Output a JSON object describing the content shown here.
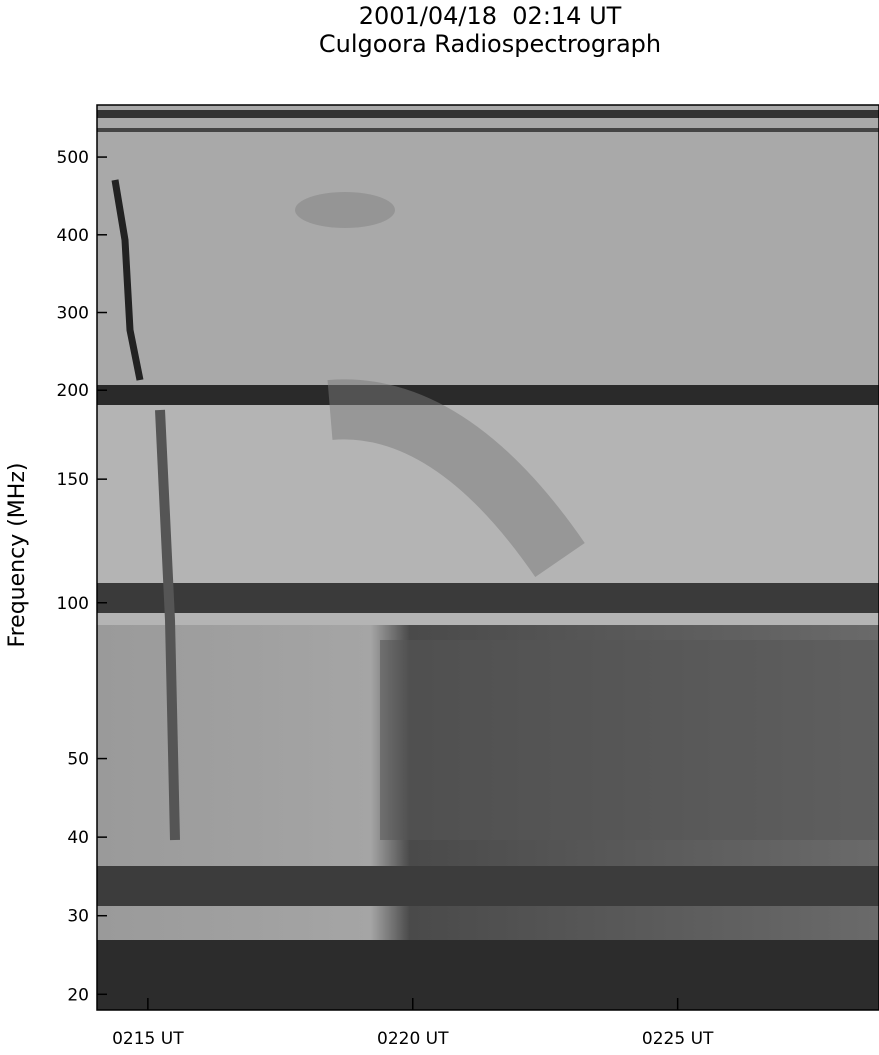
{
  "chart_data": {
    "type": "spectrogram",
    "title": "2001/04/18  02:14 UT",
    "subtitle": "Culgoora Radiospectrograph",
    "y_label": "Frequency (MHz)",
    "xlim": [
      14.04,
      28.8
    ],
    "xticks": [
      {
        "value": 15,
        "label": "0215 UT"
      },
      {
        "value": 20,
        "label": "0220 UT"
      },
      {
        "value": 25,
        "label": "0225 UT"
      }
    ],
    "panels": [
      {
        "ylim": [
          181,
          567
        ],
        "yticks": [
          200,
          300,
          400,
          500
        ]
      },
      {
        "ylim": [
          91,
          180
        ],
        "yticks": [
          100,
          150
        ]
      },
      {
        "ylim": [
          18,
          67
        ],
        "yticks": [
          20,
          30,
          40,
          50
        ]
      }
    ]
  }
}
